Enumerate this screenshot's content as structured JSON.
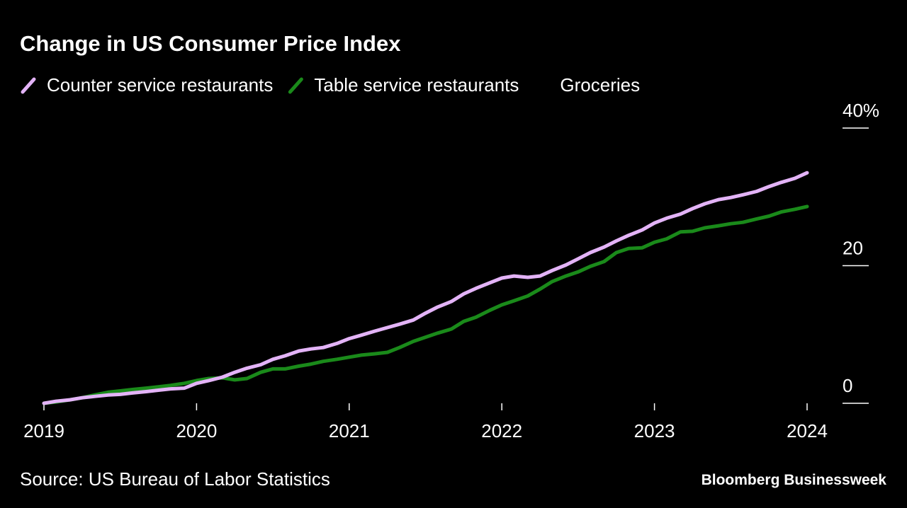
{
  "chart_data": {
    "type": "line",
    "title": "Change in US Consumer Price Index",
    "source": "Source: US Bureau of Labor Statistics",
    "brand": "Bloomberg Businessweek",
    "x": [
      2019,
      2019.08,
      2019.17,
      2019.25,
      2019.33,
      2019.42,
      2019.5,
      2019.58,
      2019.67,
      2019.75,
      2019.83,
      2019.92,
      2020,
      2020.08,
      2020.17,
      2020.25,
      2020.33,
      2020.42,
      2020.5,
      2020.58,
      2020.67,
      2020.75,
      2020.83,
      2020.92,
      2021,
      2021.08,
      2021.17,
      2021.25,
      2021.33,
      2021.42,
      2021.5,
      2021.58,
      2021.67,
      2021.75,
      2021.83,
      2021.92,
      2022,
      2022.08,
      2022.17,
      2022.25,
      2022.33,
      2022.42,
      2022.5,
      2022.58,
      2022.67,
      2022.75,
      2022.83,
      2022.92,
      2023,
      2023.08,
      2023.17,
      2023.25,
      2023.33,
      2023.42,
      2023.5,
      2023.58,
      2023.67,
      2023.75,
      2023.83,
      2023.92,
      2024
    ],
    "series": [
      {
        "name": "Counter service restaurants",
        "color": "#e3b3f7",
        "values": [
          0,
          0.3,
          0.5,
          0.8,
          1.0,
          1.2,
          1.3,
          1.5,
          1.7,
          1.9,
          2.1,
          2.2,
          2.9,
          3.3,
          3.8,
          4.5,
          5.1,
          5.6,
          6.4,
          6.9,
          7.6,
          7.9,
          8.1,
          8.7,
          9.4,
          9.9,
          10.5,
          11.0,
          11.5,
          12.1,
          13.1,
          14.0,
          14.8,
          15.9,
          16.7,
          17.5,
          18.2,
          18.5,
          18.3,
          18.5,
          19.3,
          20.1,
          21.0,
          21.9,
          22.7,
          23.6,
          24.4,
          25.2,
          26.2,
          26.9,
          27.5,
          28.3,
          29.0,
          29.6,
          29.9,
          30.3,
          30.8,
          31.5,
          32.1,
          32.7,
          33.5
        ]
      },
      {
        "name": "Table service restaurants",
        "color": "#1a8a1a",
        "values": [
          0,
          0.2,
          0.5,
          0.8,
          1.2,
          1.6,
          1.8,
          2.0,
          2.2,
          2.4,
          2.6,
          2.9,
          3.3,
          3.6,
          3.7,
          3.4,
          3.6,
          4.5,
          5.0,
          5.0,
          5.4,
          5.7,
          6.1,
          6.4,
          6.7,
          7.0,
          7.2,
          7.4,
          8.1,
          9.0,
          9.6,
          10.2,
          10.8,
          11.9,
          12.5,
          13.5,
          14.3,
          14.9,
          15.6,
          16.6,
          17.7,
          18.5,
          19.1,
          19.9,
          20.6,
          21.9,
          22.5,
          22.6,
          23.4,
          23.9,
          24.9,
          25.0,
          25.5,
          25.8,
          26.1,
          26.3,
          26.8,
          27.2,
          27.8,
          28.2,
          28.6
        ]
      },
      {
        "name": "Groceries",
        "color": "#000000",
        "values": [
          null,
          null,
          null,
          null,
          null,
          null,
          null,
          null,
          null,
          null,
          null,
          null,
          null,
          null,
          null,
          null,
          null,
          null,
          null,
          null,
          null,
          null,
          null,
          null,
          null,
          null,
          null,
          null,
          null,
          null,
          null,
          null,
          null,
          null,
          null,
          null,
          null,
          null,
          null,
          null,
          null,
          null,
          null,
          null,
          null,
          null,
          null,
          null,
          null,
          null,
          null,
          null,
          null,
          null,
          null,
          null,
          null,
          null,
          null,
          null,
          null
        ]
      }
    ],
    "xlim": [
      2019,
      2024
    ],
    "xticks": [
      2019,
      2020,
      2021,
      2022,
      2023,
      2024
    ],
    "ylim": [
      0,
      40
    ],
    "yticks": [
      0,
      20,
      {
        "value": 40,
        "label": "40%"
      }
    ],
    "grid": false
  }
}
